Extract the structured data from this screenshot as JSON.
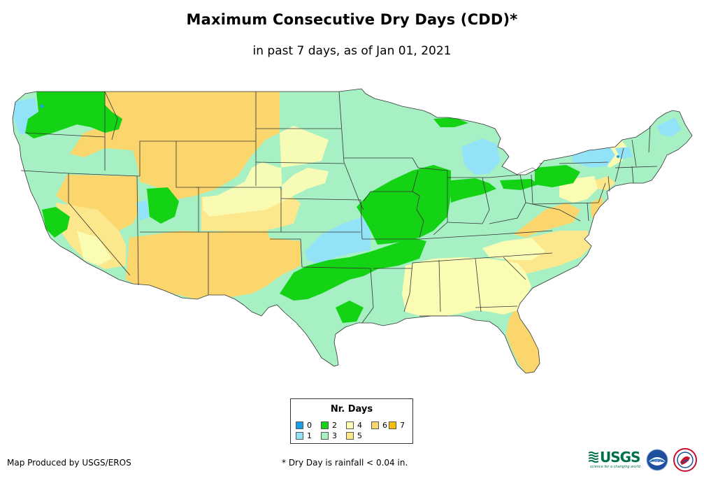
{
  "title": "Maximum Consecutive Dry Days (CDD)*",
  "subtitle": "in past 7 days, as of Jan 01, 2021",
  "legend": {
    "title": "Nr. Days",
    "items": [
      {
        "label": "0",
        "color": "#1a9fe6"
      },
      {
        "label": "1",
        "color": "#92e3f8"
      },
      {
        "label": "2",
        "color": "#14d214"
      },
      {
        "label": "3",
        "color": "#a6f0c4"
      },
      {
        "label": "4",
        "color": "#fafcb4"
      },
      {
        "label": "5",
        "color": "#fde78c"
      },
      {
        "label": "6",
        "color": "#fbd66c"
      },
      {
        "label": "7",
        "color": "#f7bd08"
      }
    ]
  },
  "footer": {
    "credit": "Map Produced by USGS/EROS",
    "footnote": "* Dry Day is rainfall < 0.04 in."
  },
  "logos": [
    {
      "name": "USGS",
      "text": "USGS",
      "tagline": "science for a changing world"
    },
    {
      "name": "NOAA",
      "text": "noaa"
    },
    {
      "name": "National Weather Service",
      "text": ""
    }
  ]
}
